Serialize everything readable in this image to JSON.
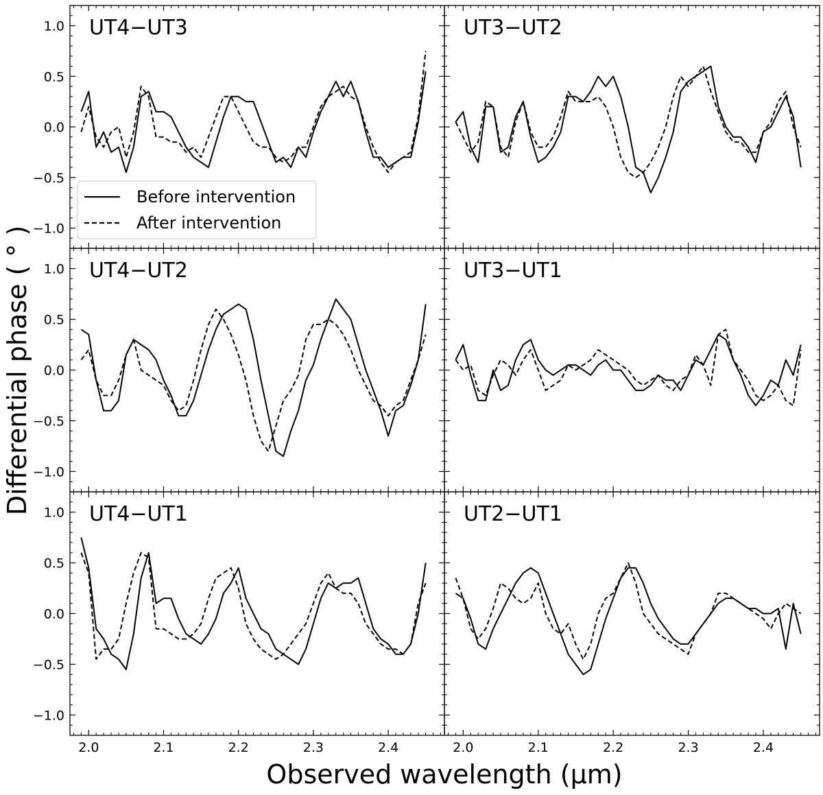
{
  "chart_data": {
    "type": "line",
    "xlabel": "Observed wavelength (μm)",
    "ylabel": "Differential phase ( ° )",
    "xlim": [
      1.975,
      2.475
    ],
    "ylim": [
      -1.2,
      1.2
    ],
    "xticks": [
      2.0,
      2.1,
      2.2,
      2.3,
      2.4
    ],
    "xtick_labels": [
      "2.0",
      "2.1",
      "2.2",
      "2.3",
      "2.4"
    ],
    "yticks": [
      -1.0,
      -0.5,
      0.0,
      0.5,
      1.0
    ],
    "ytick_labels": [
      "−1.0",
      "−0.5",
      "0.0",
      "0.5",
      "1.0"
    ],
    "legend": {
      "placement": "lower-left of top-left panel",
      "entries": [
        {
          "label": "Before intervention",
          "style": "solid"
        },
        {
          "label": "After intervention",
          "style": "dashed"
        }
      ]
    },
    "series_styles": {
      "Before intervention": "solid",
      "After intervention": "dashed"
    },
    "line_color": "#000000",
    "panels": [
      {
        "title": "UT4−UT3",
        "x": [
          1.99,
          2.0,
          2.01,
          2.02,
          2.03,
          2.04,
          2.05,
          2.06,
          2.07,
          2.08,
          2.09,
          2.1,
          2.11,
          2.12,
          2.13,
          2.14,
          2.15,
          2.16,
          2.17,
          2.18,
          2.19,
          2.2,
          2.21,
          2.22,
          2.23,
          2.24,
          2.25,
          2.26,
          2.27,
          2.28,
          2.29,
          2.3,
          2.31,
          2.32,
          2.33,
          2.34,
          2.35,
          2.36,
          2.37,
          2.38,
          2.39,
          2.4,
          2.41,
          2.42,
          2.43,
          2.44,
          2.45
        ],
        "series": [
          {
            "name": "Before intervention",
            "values": [
              0.15,
              0.35,
              -0.2,
              -0.05,
              -0.25,
              -0.2,
              -0.45,
              -0.2,
              0.3,
              0.35,
              0.15,
              0.15,
              0.1,
              -0.05,
              -0.2,
              -0.3,
              -0.35,
              -0.4,
              -0.15,
              0.1,
              0.3,
              0.3,
              0.25,
              0.25,
              0.05,
              -0.15,
              -0.35,
              -0.3,
              -0.4,
              -0.2,
              -0.3,
              -0.05,
              0.15,
              0.3,
              0.45,
              0.3,
              0.45,
              0.25,
              -0.05,
              -0.3,
              -0.3,
              -0.4,
              -0.35,
              -0.3,
              -0.3,
              0.05,
              0.55
            ]
          },
          {
            "name": "After intervention",
            "values": [
              -0.05,
              0.2,
              -0.1,
              -0.2,
              -0.05,
              0.0,
              -0.3,
              -0.05,
              0.4,
              0.3,
              -0.1,
              -0.1,
              -0.15,
              -0.15,
              -0.25,
              -0.2,
              -0.3,
              -0.1,
              0.1,
              0.3,
              0.3,
              0.15,
              0.0,
              -0.15,
              -0.2,
              -0.2,
              -0.3,
              -0.35,
              -0.3,
              -0.2,
              -0.2,
              0.0,
              0.2,
              0.3,
              0.35,
              0.4,
              0.3,
              0.25,
              0.0,
              -0.2,
              -0.35,
              -0.45,
              -0.35,
              -0.3,
              -0.25,
              0.1,
              0.75
            ]
          }
        ]
      },
      {
        "title": "UT3−UT2",
        "x": [
          1.99,
          2.0,
          2.01,
          2.02,
          2.03,
          2.04,
          2.05,
          2.06,
          2.07,
          2.08,
          2.09,
          2.1,
          2.11,
          2.12,
          2.13,
          2.14,
          2.15,
          2.16,
          2.17,
          2.18,
          2.19,
          2.2,
          2.21,
          2.22,
          2.23,
          2.24,
          2.25,
          2.26,
          2.27,
          2.28,
          2.29,
          2.3,
          2.31,
          2.32,
          2.33,
          2.34,
          2.35,
          2.36,
          2.37,
          2.38,
          2.39,
          2.4,
          2.41,
          2.42,
          2.43,
          2.44,
          2.45
        ],
        "series": [
          {
            "name": "Before intervention",
            "values": [
              0.05,
              0.15,
              -0.2,
              -0.35,
              0.2,
              0.2,
              -0.25,
              -0.2,
              0.1,
              0.25,
              -0.1,
              -0.35,
              -0.3,
              -0.2,
              -0.05,
              0.3,
              0.3,
              0.25,
              0.35,
              0.5,
              0.4,
              0.5,
              0.3,
              0.0,
              -0.4,
              -0.45,
              -0.65,
              -0.5,
              -0.3,
              -0.05,
              0.35,
              0.45,
              0.5,
              0.55,
              0.6,
              0.2,
              0.0,
              -0.1,
              -0.1,
              -0.2,
              -0.35,
              -0.05,
              0.0,
              0.15,
              0.3,
              0.1,
              -0.4
            ]
          },
          {
            "name": "After intervention",
            "values": [
              0.05,
              -0.1,
              -0.25,
              -0.15,
              0.25,
              0.2,
              -0.2,
              -0.3,
              0.05,
              0.25,
              -0.05,
              -0.2,
              -0.2,
              -0.1,
              0.1,
              0.35,
              0.25,
              0.25,
              0.25,
              0.3,
              0.2,
              0.0,
              -0.3,
              -0.45,
              -0.5,
              -0.45,
              -0.35,
              -0.2,
              0.0,
              0.3,
              0.5,
              0.4,
              0.5,
              0.6,
              0.35,
              0.15,
              -0.05,
              -0.15,
              -0.15,
              -0.25,
              -0.25,
              -0.05,
              0.05,
              0.25,
              0.35,
              0.0,
              -0.2
            ]
          }
        ]
      },
      {
        "title": "UT4−UT2",
        "x": [
          1.99,
          2.0,
          2.01,
          2.02,
          2.03,
          2.04,
          2.05,
          2.06,
          2.07,
          2.08,
          2.09,
          2.1,
          2.11,
          2.12,
          2.13,
          2.14,
          2.15,
          2.16,
          2.17,
          2.18,
          2.19,
          2.2,
          2.21,
          2.22,
          2.23,
          2.24,
          2.25,
          2.26,
          2.27,
          2.28,
          2.29,
          2.3,
          2.31,
          2.32,
          2.33,
          2.34,
          2.35,
          2.36,
          2.37,
          2.38,
          2.39,
          2.4,
          2.41,
          2.42,
          2.43,
          2.44,
          2.45
        ],
        "series": [
          {
            "name": "Before intervention",
            "values": [
              0.4,
              0.35,
              -0.1,
              -0.4,
              -0.4,
              -0.3,
              0.15,
              0.3,
              0.25,
              0.2,
              0.1,
              -0.1,
              -0.25,
              -0.45,
              -0.45,
              -0.3,
              -0.05,
              0.2,
              0.4,
              0.55,
              0.6,
              0.65,
              0.6,
              0.3,
              -0.1,
              -0.45,
              -0.8,
              -0.85,
              -0.6,
              -0.4,
              -0.1,
              0.05,
              0.3,
              0.5,
              0.7,
              0.6,
              0.5,
              0.25,
              0.0,
              -0.2,
              -0.4,
              -0.65,
              -0.4,
              -0.35,
              -0.15,
              0.1,
              0.65
            ]
          },
          {
            "name": "After intervention",
            "values": [
              0.1,
              0.2,
              -0.1,
              -0.25,
              -0.25,
              -0.1,
              0.15,
              0.3,
              0.0,
              -0.05,
              -0.1,
              -0.15,
              -0.3,
              -0.4,
              -0.35,
              -0.1,
              0.2,
              0.45,
              0.6,
              0.5,
              0.35,
              0.15,
              -0.1,
              -0.45,
              -0.7,
              -0.8,
              -0.55,
              -0.3,
              -0.2,
              -0.05,
              0.3,
              0.45,
              0.45,
              0.5,
              0.45,
              0.35,
              0.2,
              0.0,
              -0.15,
              -0.3,
              -0.35,
              -0.45,
              -0.35,
              -0.3,
              -0.1,
              0.1,
              0.35
            ]
          }
        ]
      },
      {
        "title": "UT3−UT1",
        "x": [
          1.99,
          2.0,
          2.01,
          2.02,
          2.03,
          2.04,
          2.05,
          2.06,
          2.07,
          2.08,
          2.09,
          2.1,
          2.11,
          2.12,
          2.13,
          2.14,
          2.15,
          2.16,
          2.17,
          2.18,
          2.19,
          2.2,
          2.21,
          2.22,
          2.23,
          2.24,
          2.25,
          2.26,
          2.27,
          2.28,
          2.29,
          2.3,
          2.31,
          2.32,
          2.33,
          2.34,
          2.35,
          2.36,
          2.37,
          2.38,
          2.39,
          2.4,
          2.41,
          2.42,
          2.43,
          2.44,
          2.45
        ],
        "series": [
          {
            "name": "Before intervention",
            "values": [
              0.1,
              0.25,
              -0.05,
              -0.3,
              -0.3,
              0.0,
              -0.2,
              -0.15,
              0.1,
              0.25,
              0.3,
              0.1,
              0.0,
              -0.05,
              0.0,
              0.05,
              0.05,
              0.0,
              -0.05,
              0.05,
              0.1,
              0.0,
              0.0,
              -0.1,
              -0.2,
              -0.2,
              -0.15,
              -0.05,
              -0.1,
              -0.1,
              -0.2,
              -0.05,
              0.1,
              0.05,
              0.2,
              0.35,
              0.3,
              0.1,
              -0.05,
              -0.25,
              -0.35,
              -0.25,
              -0.1,
              -0.15,
              0.1,
              -0.05,
              0.25
            ]
          },
          {
            "name": "After intervention",
            "values": [
              0.1,
              0.0,
              0.05,
              -0.2,
              -0.25,
              -0.05,
              0.1,
              0.05,
              -0.05,
              0.1,
              0.2,
              0.0,
              -0.2,
              -0.15,
              -0.1,
              0.05,
              0.0,
              0.05,
              0.1,
              0.2,
              0.15,
              0.1,
              0.05,
              0.0,
              -0.1,
              -0.15,
              -0.1,
              -0.05,
              -0.15,
              -0.2,
              -0.1,
              -0.05,
              0.15,
              0.05,
              -0.15,
              0.35,
              0.4,
              0.1,
              0.0,
              -0.1,
              -0.25,
              -0.3,
              -0.25,
              -0.15,
              -0.3,
              -0.35,
              0.2
            ]
          }
        ]
      },
      {
        "title": "UT4−UT1",
        "x": [
          1.99,
          2.0,
          2.01,
          2.02,
          2.03,
          2.04,
          2.05,
          2.06,
          2.07,
          2.08,
          2.09,
          2.1,
          2.11,
          2.12,
          2.13,
          2.14,
          2.15,
          2.16,
          2.17,
          2.18,
          2.19,
          2.2,
          2.21,
          2.22,
          2.23,
          2.24,
          2.25,
          2.26,
          2.27,
          2.28,
          2.29,
          2.3,
          2.31,
          2.32,
          2.33,
          2.34,
          2.35,
          2.36,
          2.37,
          2.38,
          2.39,
          2.4,
          2.41,
          2.42,
          2.43,
          2.44,
          2.45
        ],
        "series": [
          {
            "name": "Before intervention",
            "values": [
              0.75,
              0.45,
              -0.15,
              -0.25,
              -0.4,
              -0.45,
              -0.55,
              -0.2,
              0.35,
              0.6,
              0.1,
              0.15,
              0.15,
              -0.05,
              -0.2,
              -0.25,
              -0.3,
              -0.2,
              -0.05,
              0.2,
              0.3,
              0.45,
              0.15,
              0.0,
              -0.15,
              -0.2,
              -0.35,
              -0.4,
              -0.45,
              -0.5,
              -0.35,
              -0.1,
              0.15,
              0.3,
              0.25,
              0.3,
              0.3,
              0.35,
              0.1,
              -0.15,
              -0.25,
              -0.3,
              -0.4,
              -0.4,
              -0.3,
              0.0,
              0.5
            ]
          },
          {
            "name": "After intervention",
            "values": [
              0.6,
              0.4,
              -0.45,
              -0.35,
              -0.35,
              -0.25,
              0.1,
              0.4,
              0.6,
              0.55,
              -0.15,
              -0.15,
              -0.2,
              -0.25,
              -0.25,
              -0.2,
              -0.1,
              0.15,
              0.35,
              0.4,
              0.45,
              0.25,
              -0.1,
              -0.25,
              -0.35,
              -0.4,
              -0.45,
              -0.4,
              -0.3,
              -0.2,
              -0.1,
              0.1,
              0.3,
              0.4,
              0.25,
              0.2,
              0.2,
              0.1,
              -0.1,
              -0.2,
              -0.3,
              -0.35,
              -0.35,
              -0.4,
              -0.3,
              0.1,
              0.3
            ]
          }
        ]
      },
      {
        "title": "UT2−UT1",
        "x": [
          1.99,
          2.0,
          2.01,
          2.02,
          2.03,
          2.04,
          2.05,
          2.06,
          2.07,
          2.08,
          2.09,
          2.1,
          2.11,
          2.12,
          2.13,
          2.14,
          2.15,
          2.16,
          2.17,
          2.18,
          2.19,
          2.2,
          2.21,
          2.22,
          2.23,
          2.24,
          2.25,
          2.26,
          2.27,
          2.28,
          2.29,
          2.3,
          2.31,
          2.32,
          2.33,
          2.34,
          2.35,
          2.36,
          2.37,
          2.38,
          2.39,
          2.4,
          2.41,
          2.42,
          2.43,
          2.44,
          2.45
        ],
        "series": [
          {
            "name": "Before intervention",
            "values": [
              0.2,
              0.15,
              -0.05,
              -0.3,
              -0.35,
              -0.15,
              0.0,
              0.15,
              0.3,
              0.4,
              0.45,
              0.4,
              0.2,
              0.0,
              -0.2,
              -0.4,
              -0.5,
              -0.6,
              -0.55,
              -0.3,
              -0.05,
              0.15,
              0.35,
              0.45,
              0.45,
              0.3,
              0.1,
              -0.05,
              -0.15,
              -0.25,
              -0.3,
              -0.3,
              -0.2,
              -0.1,
              0.0,
              0.1,
              0.15,
              0.15,
              0.1,
              0.05,
              0.05,
              0.0,
              0.0,
              0.05,
              -0.35,
              0.1,
              -0.2
            ]
          },
          {
            "name": "After intervention",
            "values": [
              0.35,
              0.15,
              -0.15,
              -0.25,
              -0.15,
              0.05,
              0.3,
              0.25,
              0.15,
              0.1,
              0.15,
              0.3,
              0.0,
              -0.15,
              -0.2,
              -0.1,
              -0.3,
              -0.45,
              -0.3,
              0.0,
              0.15,
              0.2,
              0.35,
              0.5,
              0.3,
              0.0,
              -0.1,
              -0.2,
              -0.25,
              -0.3,
              -0.35,
              -0.4,
              -0.2,
              -0.1,
              0.0,
              0.2,
              0.2,
              0.15,
              0.1,
              0.05,
              0.0,
              -0.05,
              -0.15,
              0.0,
              0.1,
              0.05,
              0.0
            ]
          }
        ]
      }
    ]
  }
}
